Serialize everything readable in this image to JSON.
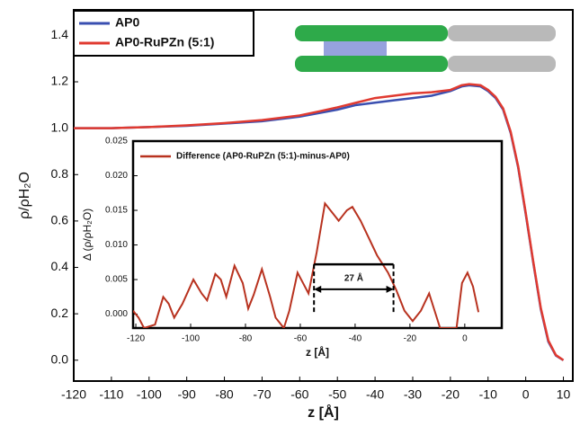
{
  "chart_data": [
    {
      "type": "line",
      "xlabel": "z [Å]",
      "ylabel": "ρ/ρH₂O",
      "xlim": [
        -120,
        12.5
      ],
      "ylim": [
        -0.09,
        1.51
      ],
      "xticks": [
        -120,
        -110,
        -100,
        -90,
        -80,
        -70,
        -60,
        -50,
        -40,
        -30,
        -20,
        -10,
        0,
        10
      ],
      "yticks": [
        {
          "value": 0,
          "label": "0.0"
        },
        {
          "value": 0.2,
          "label": "0.2"
        },
        {
          "value": 0.4,
          "label": "0.4"
        },
        {
          "value": 0.6,
          "label": "0.6"
        },
        {
          "value": 0.8,
          "label": "0.8"
        },
        {
          "value": 1,
          "label": "1.0"
        },
        {
          "value": 1.2,
          "label": "1.2"
        },
        {
          "value": 1.4,
          "label": "1.4"
        }
      ],
      "legend": "upper left",
      "x": [
        -120,
        -110,
        -100,
        -90,
        -80,
        -70,
        -60,
        -55,
        -50,
        -45,
        -40,
        -35,
        -30,
        -25,
        -20,
        -17,
        -15,
        -12,
        -10,
        -8,
        -6,
        -4,
        -2,
        0,
        2,
        4,
        6,
        8,
        10
      ],
      "series": [
        {
          "name": "AP0",
          "color": "#3a4fb0",
          "values": [
            1.0,
            1.0,
            1.005,
            1.01,
            1.02,
            1.03,
            1.05,
            1.065,
            1.08,
            1.1,
            1.11,
            1.12,
            1.13,
            1.14,
            1.16,
            1.18,
            1.185,
            1.18,
            1.16,
            1.13,
            1.08,
            0.98,
            0.83,
            0.63,
            0.42,
            0.22,
            0.08,
            0.02,
            0.0
          ]
        },
        {
          "name": "AP0-RuPZn (5:1)",
          "color": "#e03a30",
          "values": [
            1.0,
            1.0,
            1.005,
            1.012,
            1.022,
            1.035,
            1.055,
            1.072,
            1.09,
            1.11,
            1.13,
            1.14,
            1.15,
            1.155,
            1.165,
            1.185,
            1.19,
            1.185,
            1.165,
            1.135,
            1.085,
            0.985,
            0.835,
            0.635,
            0.425,
            0.225,
            0.085,
            0.022,
            0.0
          ]
        }
      ]
    },
    {
      "type": "line",
      "xlabel": "z [Å]",
      "ylabel": "Δ (ρ/ρH₂O)",
      "xlim": [
        -121,
        13.5
      ],
      "ylim": [
        -0.002,
        0.025
      ],
      "xticks": [
        -120,
        -100,
        -80,
        -60,
        -40,
        -20,
        0
      ],
      "yticks": [
        {
          "value": 0,
          "label": "0.000"
        },
        {
          "value": 0.005,
          "label": "0.005"
        },
        {
          "value": 0.01,
          "label": "0.010"
        },
        {
          "value": 0.015,
          "label": "0.015"
        },
        {
          "value": 0.02,
          "label": "0.020"
        },
        {
          "value": 0.025,
          "label": "0.025"
        }
      ],
      "legend": "upper left",
      "x": [
        -121,
        -119,
        -117,
        -113,
        -110,
        -108,
        -106,
        -103,
        -99,
        -96,
        -94,
        -91,
        -89,
        -87,
        -84,
        -81,
        -79,
        -77,
        -74,
        -71,
        -69,
        -66,
        -64,
        -61,
        -59,
        -57,
        -54,
        -51,
        -48,
        -46,
        -43,
        -41,
        -38,
        -35,
        -32,
        -28,
        -25,
        -22,
        -19,
        -16,
        -13,
        -11,
        -9,
        -3,
        -1,
        1,
        3,
        5
      ],
      "series": [
        {
          "name": "Difference (AP0-RuPZn (5:1)-minus-AP0)",
          "color": "#b8321f",
          "values": [
            0.0005,
            -0.0005,
            -0.002,
            -0.0015,
            0.0025,
            0.0015,
            -0.0005,
            0.0015,
            0.005,
            0.003,
            0.002,
            0.0058,
            0.005,
            0.0025,
            0.007,
            0.0045,
            0.0008,
            0.0028,
            0.0065,
            0.0025,
            -0.0005,
            -0.002,
            0.0005,
            0.006,
            0.0045,
            0.003,
            0.009,
            0.016,
            0.0145,
            0.0135,
            0.015,
            0.0155,
            0.0135,
            0.011,
            0.0085,
            0.006,
            0.0035,
            0.0005,
            -0.001,
            0.0005,
            0.003,
            0.0005,
            -0.002,
            -0.002,
            0.0045,
            0.006,
            0.004,
            0.0003
          ]
        }
      ],
      "annotation": {
        "text": "27 Å",
        "x": [
          -55,
          -26
        ],
        "y": 0.0072
      }
    }
  ]
}
